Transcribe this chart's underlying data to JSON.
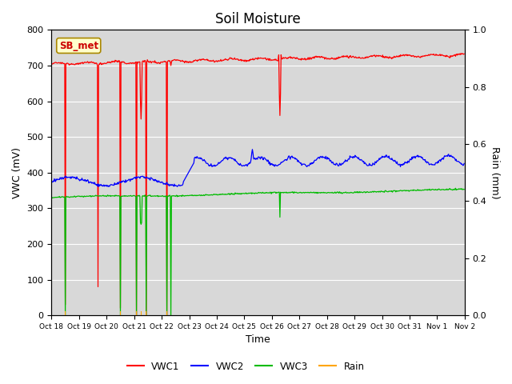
{
  "title": "Soil Moisture",
  "xlabel": "Time",
  "ylabel_left": "VWC (mV)",
  "ylabel_right": "Rain (mm)",
  "ylim_left": [
    0,
    800
  ],
  "ylim_right": [
    0,
    1.0
  ],
  "yticks_left": [
    0,
    100,
    200,
    300,
    400,
    500,
    600,
    700,
    800
  ],
  "yticks_right": [
    0.0,
    0.2,
    0.4,
    0.6,
    0.8,
    1.0
  ],
  "bg_color": "#d8d8d8",
  "fig_color": "#ffffff",
  "legend_colors": {
    "VWC1": "#ff0000",
    "VWC2": "#0000ff",
    "VWC3": "#00bb00",
    "Rain": "#ffa500"
  },
  "annotation_box": "SB_met",
  "annotation_box_color": "#ffffcc",
  "annotation_box_edge": "#aa8800",
  "title_fontsize": 12,
  "axis_fontsize": 9,
  "tick_fontsize": 8
}
